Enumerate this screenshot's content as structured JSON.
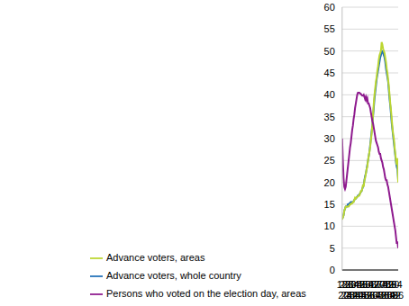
{
  "chart_data": {
    "type": "line",
    "x": [
      18,
      19,
      20,
      21,
      22,
      23,
      24,
      25,
      26,
      27,
      28,
      29,
      30,
      31,
      32,
      33,
      34,
      35,
      36,
      37,
      38,
      39,
      40,
      41,
      42,
      43,
      44,
      45,
      46,
      47,
      48,
      49,
      50,
      51,
      52,
      53,
      54,
      55,
      56,
      57,
      58,
      59,
      60,
      61,
      62,
      63,
      64,
      65,
      66,
      67,
      68,
      69,
      70,
      71,
      72,
      73,
      74,
      75,
      76,
      77,
      78,
      79,
      80,
      81,
      82,
      83,
      84,
      85,
      86,
      87,
      88,
      89,
      90,
      91,
      92,
      93,
      94,
      95,
      96
    ],
    "series": [
      {
        "name": "Advance voters, whole country",
        "color": "#2270b8",
        "values": [
          12,
          12,
          12.5,
          13.5,
          14,
          14.5,
          14.5,
          14.5,
          15,
          15,
          15.2,
          15.3,
          15.5,
          15.5,
          15.5,
          15.5,
          15.7,
          16,
          16.2,
          16.3,
          16.5,
          16.7,
          17,
          17,
          17.3,
          17.5,
          17.8,
          18,
          18.5,
          19,
          19.5,
          20.5,
          21.5,
          22,
          23,
          24,
          25,
          26,
          27,
          28.5,
          30,
          31.5,
          33,
          35,
          37,
          39,
          40.5,
          42,
          43.5,
          44.5,
          45.5,
          46.5,
          47.5,
          48.5,
          49,
          50,
          50,
          49.5,
          49,
          48.5,
          47.5,
          46,
          45,
          44,
          43,
          41,
          39,
          37.5,
          35.5,
          33.5,
          32,
          30.5,
          29,
          27.5,
          26,
          24.5,
          23.5,
          23,
          20.5
        ]
      },
      {
        "name": "Advance voters, areas",
        "color": "#bcd631",
        "values": [
          11.5,
          12,
          12.5,
          13.5,
          14,
          14.5,
          14.5,
          14.5,
          14.5,
          14.5,
          14.7,
          15,
          15,
          15.2,
          15.2,
          15.5,
          15.5,
          16,
          16.5,
          16.3,
          16.5,
          16.7,
          16.8,
          17,
          17,
          17.5,
          18,
          18,
          18.5,
          19.5,
          19,
          20.5,
          21,
          22,
          23,
          23.5,
          25,
          26,
          27,
          28,
          29.5,
          31,
          33,
          35.5,
          38,
          40,
          41.5,
          43,
          44,
          45.5,
          46.5,
          48,
          49,
          49.5,
          50,
          52,
          51.5,
          50.5,
          50,
          49.5,
          48.5,
          47.5,
          46,
          45,
          43.5,
          42,
          40,
          38,
          36.5,
          34.5,
          32.5,
          31,
          30,
          28,
          26.5,
          25,
          24,
          25.5,
          20
        ]
      },
      {
        "name": "Persons who voted on the election day, areas",
        "color": "#8e1a8e",
        "values": [
          30,
          25,
          21,
          19,
          18.5,
          19,
          20.5,
          22,
          23.5,
          25,
          26.5,
          28,
          29,
          30.5,
          32,
          33,
          34.5,
          35.5,
          37,
          38,
          39,
          40,
          40.5,
          40.5,
          40.5,
          40.3,
          40.2,
          40,
          39.8,
          39.8,
          40,
          39.5,
          39,
          39.5,
          38.8,
          39.2,
          38,
          38,
          37.5,
          37,
          36,
          35,
          34,
          33.5,
          32.5,
          31.5,
          30.5,
          29.5,
          29,
          28.5,
          28,
          27,
          26.5,
          26.5,
          25.5,
          25,
          24.5,
          23.5,
          23,
          22,
          21,
          20.5,
          20.5,
          19.5,
          19,
          18,
          17,
          16,
          15,
          14,
          13,
          12,
          11,
          10,
          9,
          7.5,
          6,
          6.5,
          5
        ]
      }
    ],
    "xlim": [
      18,
      96
    ],
    "xticks": [
      18,
      20,
      22,
      24,
      26,
      28,
      30,
      32,
      34,
      36,
      38,
      40,
      42,
      44,
      46,
      48,
      50,
      52,
      54,
      56,
      58,
      60,
      62,
      64,
      66,
      68,
      70,
      72,
      74,
      76,
      78,
      80,
      82,
      84,
      86,
      88,
      90,
      92,
      94,
      96
    ],
    "ylim": [
      0,
      60
    ],
    "yticks": [
      0,
      5,
      10,
      15,
      20,
      25,
      30,
      35,
      40,
      45,
      50,
      55,
      60
    ],
    "grid": true,
    "legend": "bottom"
  }
}
